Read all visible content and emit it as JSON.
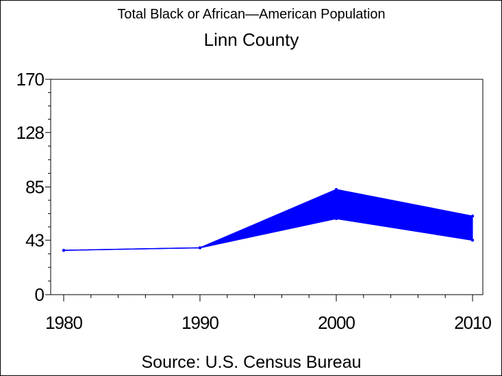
{
  "chart_data": {
    "type": "area",
    "title": "Total Black or African—American Population",
    "subtitle": "Linn County",
    "source": "Source: U.S. Census Bureau",
    "xlabel": "",
    "ylabel": "",
    "x": [
      1980,
      1990,
      2000,
      2010
    ],
    "xticklabels": [
      "1980",
      "1990",
      "2000",
      "2010"
    ],
    "yticks": [
      0,
      43,
      85,
      128,
      170
    ],
    "yticklabels": [
      "0",
      "43",
      "85",
      "128",
      "170"
    ],
    "ylim": [
      0,
      170
    ],
    "xlim": [
      1980,
      2010
    ],
    "series": [
      {
        "values": [
          35,
          37,
          83,
          62
        ]
      },
      {
        "values": [
          35,
          37,
          60,
          43
        ]
      }
    ],
    "grid": false,
    "legend": "none",
    "color": "#0000ff"
  }
}
